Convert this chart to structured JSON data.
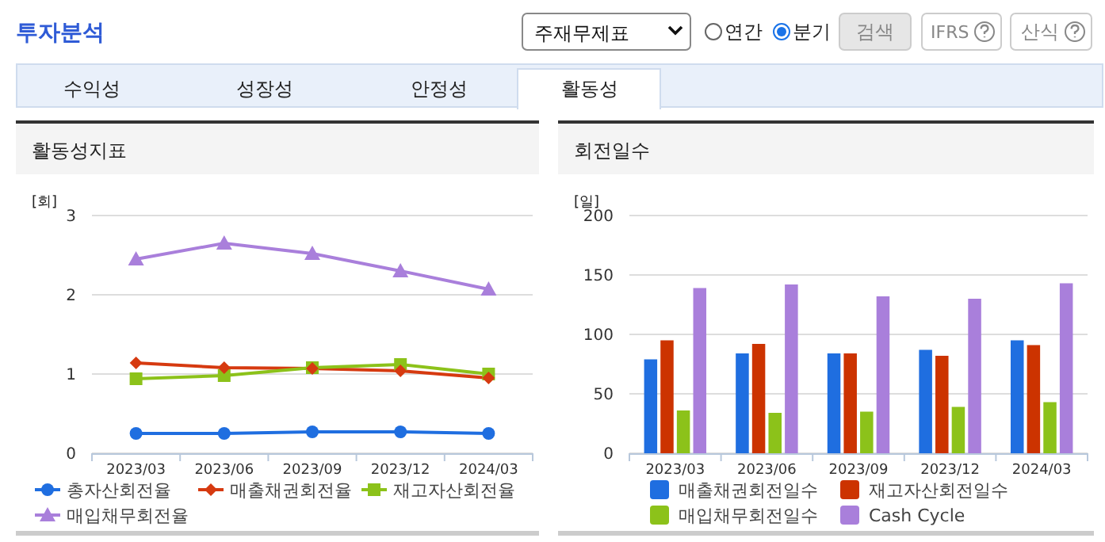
{
  "chart_data": [
    {
      "type": "line",
      "title": "활동성지표",
      "ylabel": "[회]",
      "annotations": [
        "투자분석",
        "주재무제표",
        "연간",
        "분기",
        "검색",
        "IFRS",
        "산식",
        "수익성",
        "성장성",
        "안정성",
        "활동성"
      ],
      "categories": [
        "2023/03",
        "2023/06",
        "2023/09",
        "2023/12",
        "2024/03"
      ],
      "series": [
        {
          "name": "총자산회전율",
          "color": "#1f6ee0",
          "marker": "circle",
          "values": [
            0.25,
            0.25,
            0.27,
            0.27,
            0.25
          ]
        },
        {
          "name": "매출채권회전율",
          "color": "#d63a10",
          "marker": "diamond",
          "values": [
            1.14,
            1.08,
            1.07,
            1.04,
            0.95
          ]
        },
        {
          "name": "재고자산회전율",
          "color": "#8cc21a",
          "marker": "square",
          "values": [
            0.94,
            0.98,
            1.08,
            1.12,
            1.0
          ]
        },
        {
          "name": "매입채무회전율",
          "color": "#a97fdb",
          "marker": "triangle",
          "values": [
            2.45,
            2.65,
            2.52,
            2.3,
            2.07
          ]
        }
      ],
      "ylim": [
        0,
        3
      ],
      "yticks": [
        0,
        1,
        2,
        3
      ],
      "grid": "y",
      "legend": "bottom",
      "line_style": "solid"
    },
    {
      "type": "bar",
      "title": "회전일수",
      "ylabel": "[일]",
      "categories": [
        "2023/03",
        "2023/06",
        "2023/09",
        "2023/12",
        "2024/03"
      ],
      "series": [
        {
          "name": "매출채권회전일수",
          "color": "#1f6ee0",
          "values": [
            79,
            84,
            84,
            87,
            95
          ]
        },
        {
          "name": "재고자산회전일수",
          "color": "#cc3300",
          "values": [
            95,
            92,
            84,
            82,
            91
          ]
        },
        {
          "name": "매입채무회전일수",
          "color": "#8cc21a",
          "values": [
            36,
            34,
            35,
            39,
            43
          ]
        },
        {
          "name": "Cash Cycle",
          "color": "#a97fdb",
          "values": [
            139,
            142,
            132,
            130,
            143
          ]
        }
      ],
      "ylim": [
        0,
        200
      ],
      "yticks": [
        0,
        50,
        100,
        150,
        200
      ],
      "grid": "y",
      "legend": "bottom"
    }
  ]
}
